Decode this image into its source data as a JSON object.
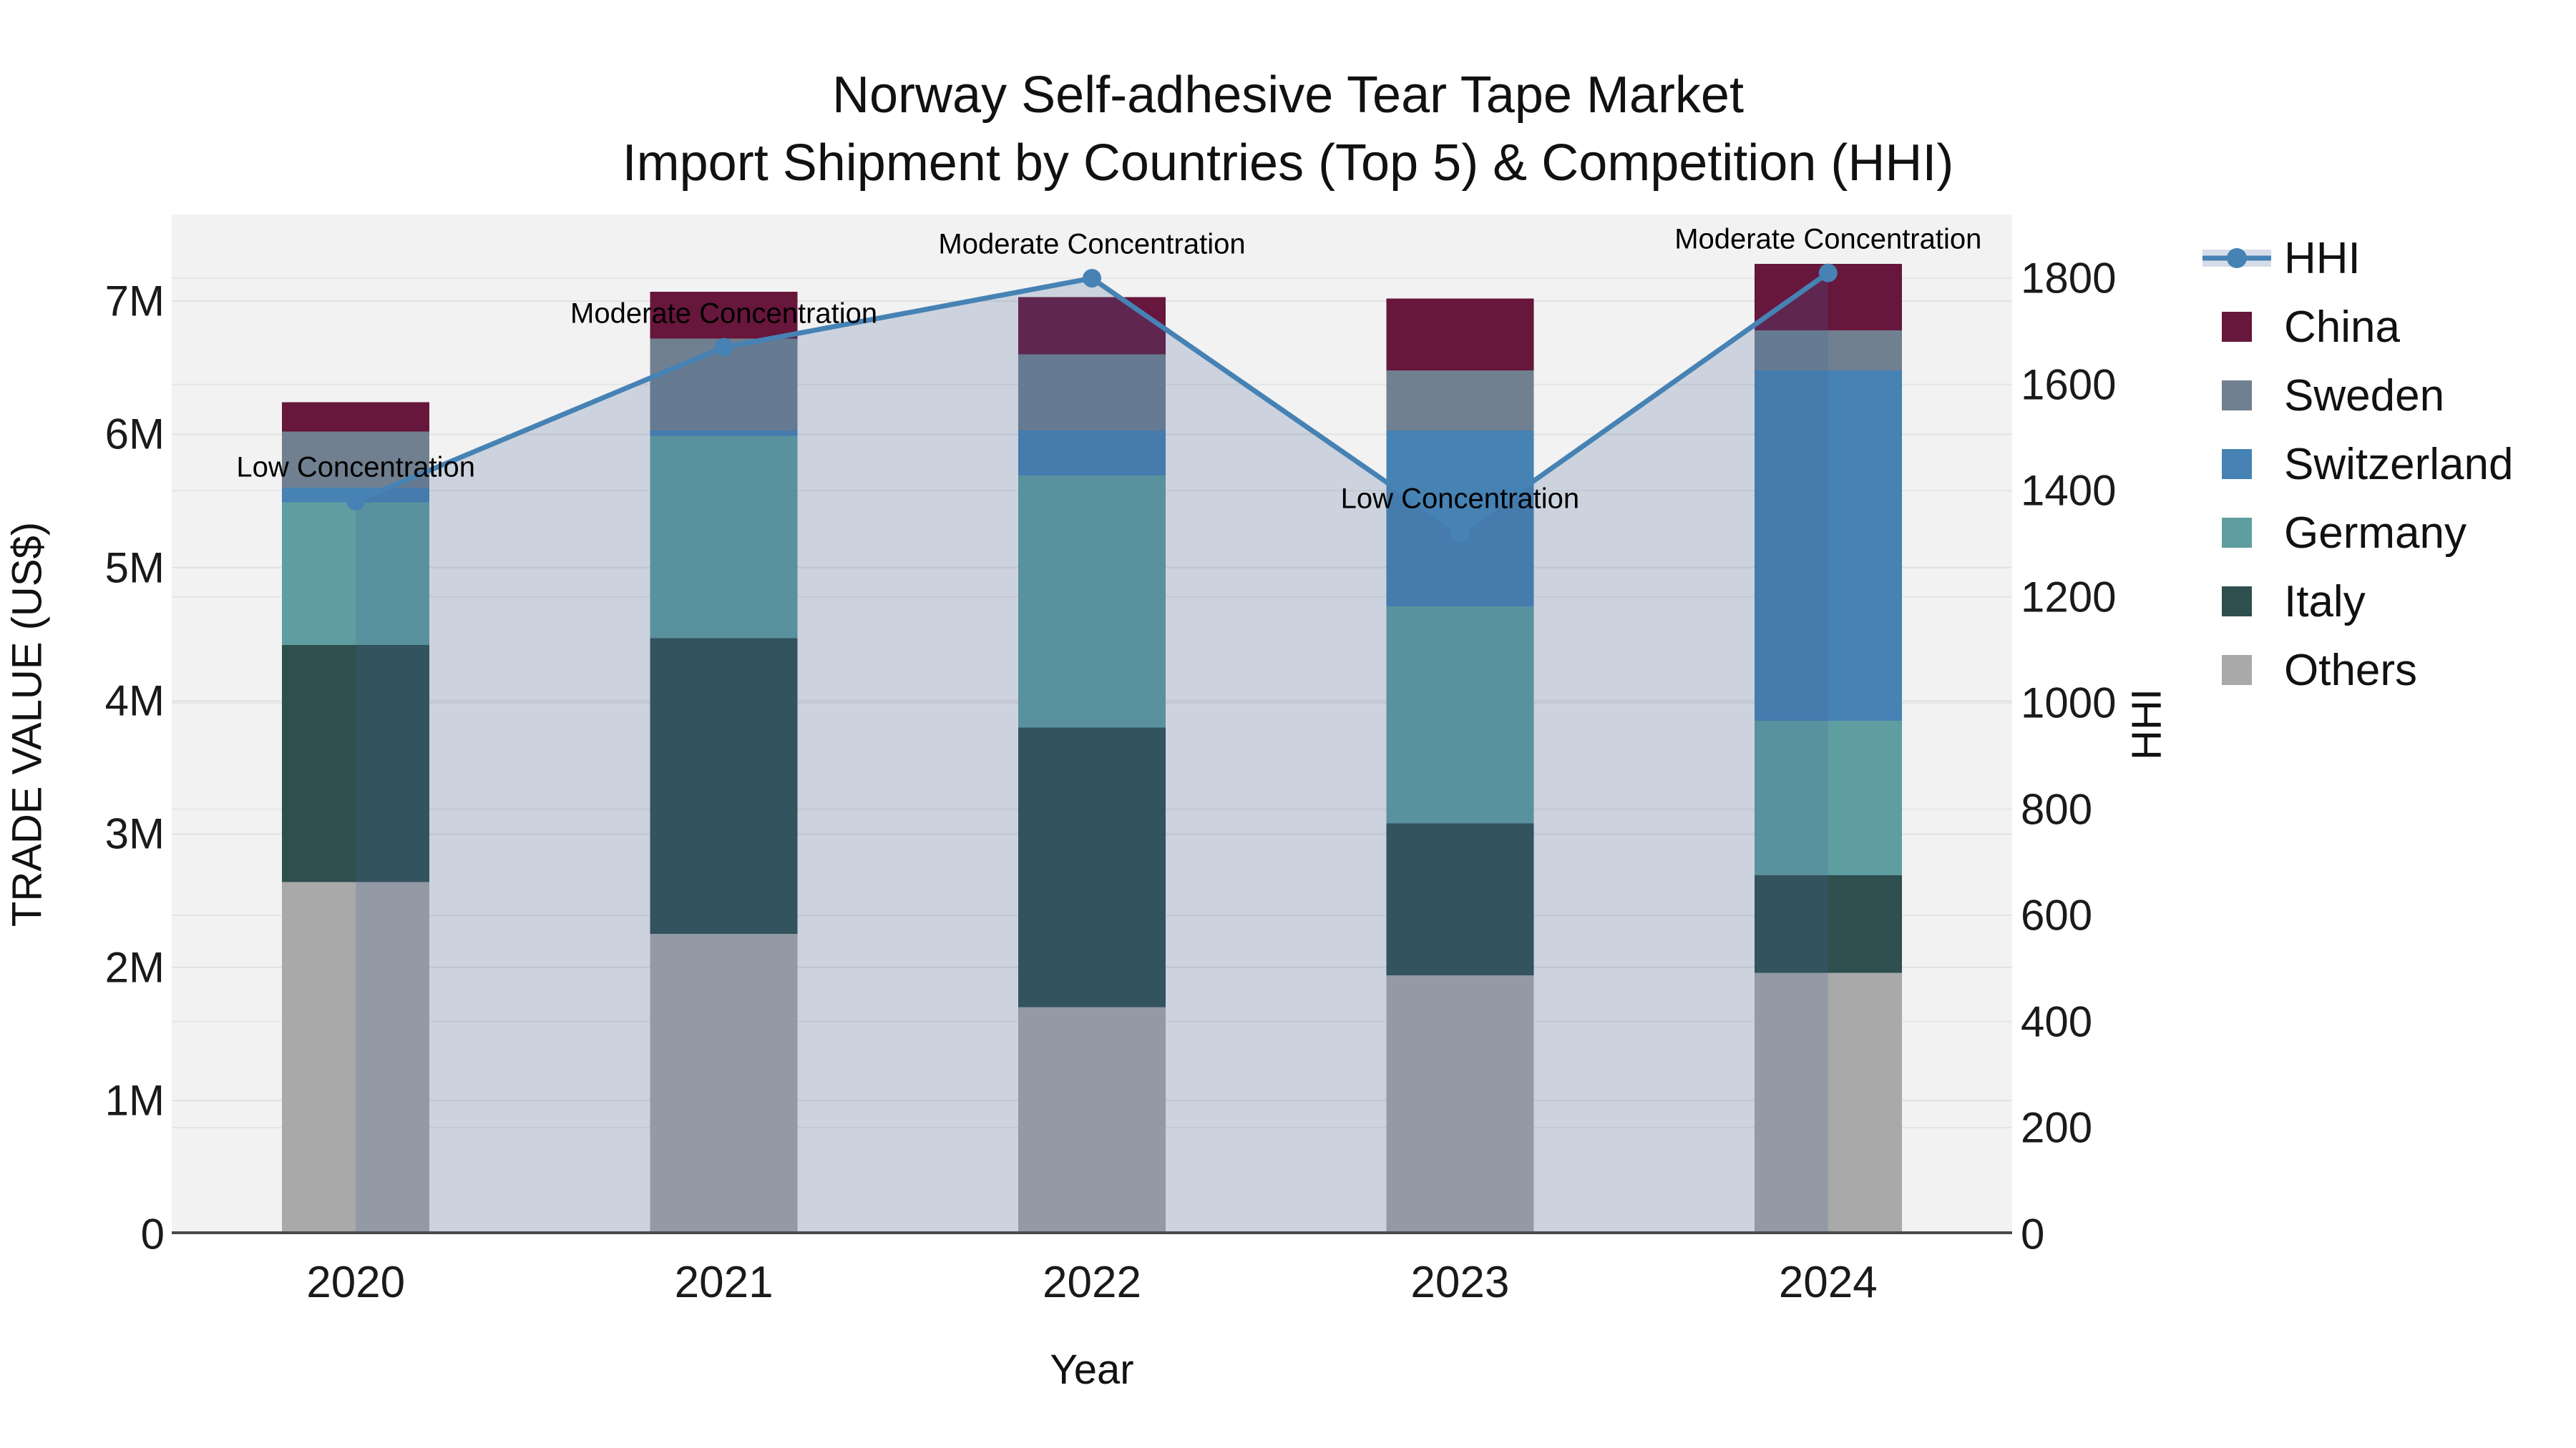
{
  "title": {
    "line1": "Norway Self-adhesive Tear Tape Market",
    "line2": "Import Shipment by Countries (Top 5) & Competition (HHI)"
  },
  "axes": {
    "y_left_title": "TRADE VALUE (US$)",
    "y_right_title": "HHI",
    "x_title": "Year",
    "y_left_tick_labels": [
      "0",
      "1M",
      "2M",
      "3M",
      "4M",
      "5M",
      "6M",
      "7M"
    ],
    "y_right_tick_labels": [
      "0",
      "200",
      "400",
      "600",
      "800",
      "1000",
      "1200",
      "1400",
      "1600",
      "1800"
    ]
  },
  "chart_data": {
    "type": "bar",
    "subtype": "stacked-bars-with-line-overlay",
    "title": "Norway Self-adhesive Tear Tape Market",
    "subtitle": "Import Shipment by Countries (Top 5) & Competition (HHI)",
    "xlabel": "Year",
    "ylabel_left": "TRADE VALUE (US$)",
    "ylabel_right": "HHI",
    "categories": [
      "2020",
      "2021",
      "2022",
      "2023",
      "2024"
    ],
    "series": [
      {
        "name": "Others",
        "axis": "left",
        "values_musd": [
          2.64,
          2.25,
          1.7,
          1.94,
          1.96
        ]
      },
      {
        "name": "Italy",
        "axis": "left",
        "values_musd": [
          1.78,
          2.22,
          2.1,
          1.14,
          0.73
        ]
      },
      {
        "name": "Germany",
        "axis": "left",
        "values_musd": [
          1.07,
          1.52,
          1.89,
          1.63,
          1.16
        ]
      },
      {
        "name": "Switzerland",
        "axis": "left",
        "values_musd": [
          0.11,
          0.04,
          0.34,
          1.32,
          2.63
        ]
      },
      {
        "name": "Sweden",
        "axis": "left",
        "values_musd": [
          0.42,
          0.69,
          0.57,
          0.45,
          0.3
        ]
      },
      {
        "name": "China",
        "axis": "left",
        "values_musd": [
          0.22,
          0.35,
          0.43,
          0.54,
          0.5
        ]
      }
    ],
    "line_series": {
      "name": "HHI",
      "axis": "right",
      "values": [
        1380,
        1670,
        1800,
        1320,
        1810
      ],
      "area_fill": true
    },
    "annotations": [
      "Low Concentration",
      "Moderate Concentration",
      "Moderate Concentration",
      "Low Concentration",
      "Moderate Concentration"
    ],
    "y_left_ticks_musd": [
      0,
      1,
      2,
      3,
      4,
      5,
      6,
      7
    ],
    "y_right_ticks": [
      0,
      200,
      400,
      600,
      800,
      1000,
      1200,
      1400,
      1600,
      1800
    ],
    "ylim_left_musd": [
      0,
      7.65
    ],
    "ylim_right": [
      0,
      1920
    ],
    "grid": true,
    "legend_position": "right-outside"
  },
  "legend": {
    "entries": [
      {
        "key": "hhi",
        "label": "HHI",
        "glyph": "line-with-band"
      },
      {
        "key": "china",
        "label": "China",
        "glyph": "swatch"
      },
      {
        "key": "sweden",
        "label": "Sweden",
        "glyph": "swatch"
      },
      {
        "key": "switzerland",
        "label": "Switzerland",
        "glyph": "swatch"
      },
      {
        "key": "germany",
        "label": "Germany",
        "glyph": "swatch"
      },
      {
        "key": "italy",
        "label": "Italy",
        "glyph": "swatch"
      },
      {
        "key": "others",
        "label": "Others",
        "glyph": "swatch"
      }
    ]
  },
  "colors": {
    "china": "#67163C",
    "sweden": "#708090",
    "switzerland": "#4682B4",
    "germany": "#5F9EA0",
    "italy": "#2F4F4F",
    "others": "#A9A9A9",
    "hhi_line": "#4682B4",
    "hhi_fill": "rgba(70,100,150,0.22)",
    "plot_background": "#f2f2f2",
    "grid_line": "#e5e5e5",
    "axis_line": "#4a4a4a"
  }
}
